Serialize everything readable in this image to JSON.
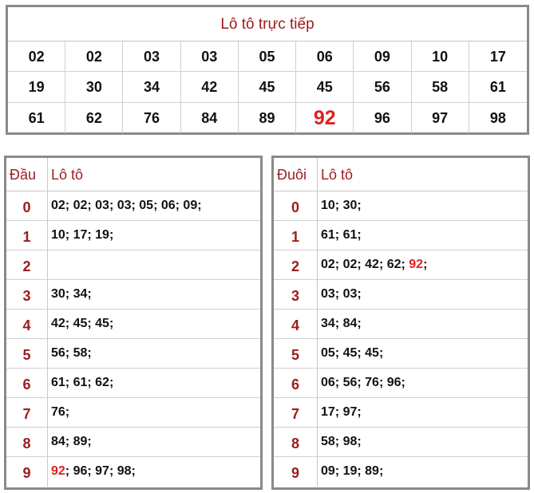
{
  "title": "Lô tô trực tiếp",
  "numbers": [
    "02",
    "02",
    "03",
    "03",
    "05",
    "06",
    "09",
    "10",
    "17",
    "19",
    "30",
    "34",
    "42",
    "45",
    "45",
    "56",
    "58",
    "61",
    "61",
    "62",
    "76",
    "84",
    "89",
    "92",
    "96",
    "97",
    "98"
  ],
  "highlight_number": "92",
  "left_table": {
    "head_key": "Đầu",
    "head_val": "Lô tô",
    "rows": [
      {
        "key": "0",
        "val": "02; 02; 03; 03; 05; 06; 09;"
      },
      {
        "key": "1",
        "val": "10; 17; 19;"
      },
      {
        "key": "2",
        "val": ""
      },
      {
        "key": "3",
        "val": "30; 34;"
      },
      {
        "key": "4",
        "val": "42; 45; 45;"
      },
      {
        "key": "5",
        "val": "56; 58;"
      },
      {
        "key": "6",
        "val": "61; 61; 62;"
      },
      {
        "key": "7",
        "val": "76;"
      },
      {
        "key": "8",
        "val": "84; 89;"
      },
      {
        "key": "9",
        "val": "92; 96; 97; 98;"
      }
    ]
  },
  "right_table": {
    "head_key": "Đuôi",
    "head_val": "Lô tô",
    "rows": [
      {
        "key": "0",
        "val": "10; 30;"
      },
      {
        "key": "1",
        "val": "61; 61;"
      },
      {
        "key": "2",
        "val": "02; 02; 42; 62; 92;"
      },
      {
        "key": "3",
        "val": "03; 03;"
      },
      {
        "key": "4",
        "val": "34; 84;"
      },
      {
        "key": "5",
        "val": "05; 45; 45;"
      },
      {
        "key": "6",
        "val": "06; 56; 76; 96;"
      },
      {
        "key": "7",
        "val": "17; 97;"
      },
      {
        "key": "8",
        "val": "58; 98;"
      },
      {
        "key": "9",
        "val": "09; 19; 89;"
      }
    ]
  },
  "colors": {
    "accent": "#9b1c1c",
    "highlight": "#e02020",
    "border": "#8a8a8a"
  }
}
